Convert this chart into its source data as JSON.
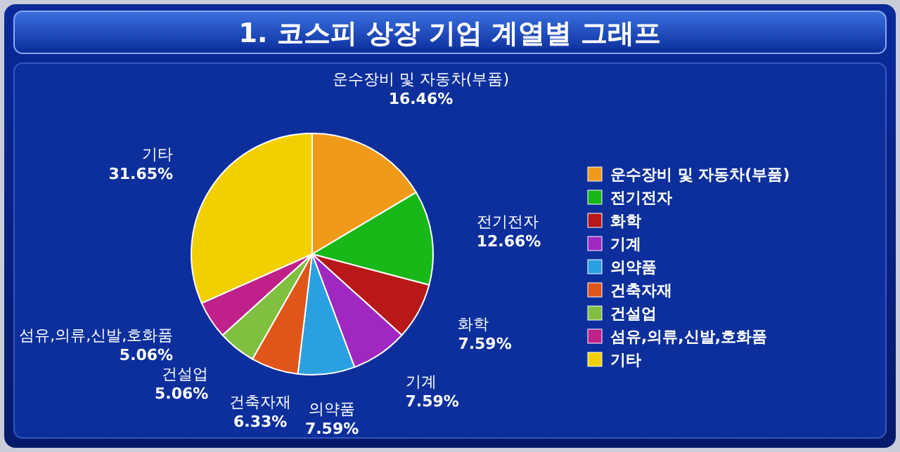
{
  "chart_data": {
    "type": "pie",
    "title": "1. 코스피 상장 기업 계열별 그래프",
    "categories": [
      "운수장비 및 자동차(부품)",
      "전기전자",
      "화학",
      "기계",
      "의약품",
      "건축자재",
      "건설업",
      "섬유,의류,신발,호화품",
      "기타"
    ],
    "values": [
      16.46,
      12.66,
      7.59,
      7.59,
      7.59,
      6.33,
      5.06,
      5.06,
      31.65
    ],
    "colors": [
      "#f09a1a",
      "#18b818",
      "#b81818",
      "#a028c0",
      "#2aa0e0",
      "#e0561a",
      "#80c040",
      "#c0208a",
      "#f2d000"
    ],
    "value_labels": [
      "16.46%",
      "12.66%",
      "7.59%",
      "7.59%",
      "7.59%",
      "6.33%",
      "5.06%",
      "5.06%",
      "31.65%"
    ],
    "legend": "right"
  }
}
